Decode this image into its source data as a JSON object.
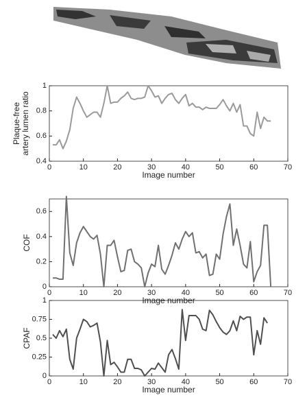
{
  "chart_data": [
    {
      "type": "line",
      "ylabel": [
        "Plaque-free",
        "artery lumen ratio"
      ],
      "xlabel": "Image number",
      "xlim": [
        0,
        70
      ],
      "xticks": [
        0,
        10,
        20,
        30,
        40,
        50,
        60,
        70
      ],
      "ylim": [
        0.4,
        1
      ],
      "yticks": [
        0.4,
        0.6,
        0.8,
        1
      ],
      "x": [
        1,
        2,
        3,
        4,
        5,
        6,
        7,
        8,
        9,
        10,
        11,
        12,
        13,
        14,
        15,
        16,
        17,
        18,
        19,
        20,
        21,
        22,
        23,
        24,
        25,
        26,
        27,
        28,
        29,
        30,
        31,
        32,
        33,
        34,
        35,
        36,
        37,
        38,
        39,
        40,
        41,
        42,
        43,
        44,
        45,
        46,
        47,
        48,
        49,
        50,
        51,
        52,
        53,
        54,
        55,
        56,
        57,
        58,
        59,
        60,
        61,
        62,
        63,
        64,
        65
      ],
      "series": [
        {
          "color": "#9a9a9a",
          "values": [
            0.53,
            0.53,
            0.57,
            0.5,
            0.56,
            0.65,
            0.82,
            0.91,
            0.86,
            0.8,
            0.75,
            0.77,
            0.79,
            0.79,
            0.75,
            0.86,
            1.0,
            0.86,
            0.87,
            0.87,
            0.9,
            0.92,
            0.95,
            0.9,
            0.89,
            0.9,
            0.9,
            0.91,
            1.0,
            0.96,
            0.91,
            0.92,
            0.86,
            0.9,
            0.93,
            0.94,
            0.89,
            0.86,
            0.9,
            0.93,
            0.84,
            0.86,
            0.83,
            0.83,
            0.81,
            0.83,
            0.82,
            0.82,
            0.82,
            0.85,
            0.89,
            0.84,
            0.8,
            0.86,
            0.79,
            0.85,
            0.68,
            0.68,
            0.62,
            0.6,
            0.79,
            0.66,
            0.75,
            0.72,
            0.72
          ]
        }
      ]
    },
    {
      "type": "line",
      "ylabel": [
        "COF"
      ],
      "xlabel": "Image number",
      "xlim": [
        0,
        70
      ],
      "xticks": [
        0,
        10,
        20,
        30,
        40,
        50,
        60,
        70
      ],
      "ylim": [
        0,
        0.7
      ],
      "yticks": [
        0,
        0.2,
        0.4,
        0.6
      ],
      "x": [
        1,
        2,
        3,
        4,
        5,
        6,
        7,
        8,
        9,
        10,
        11,
        12,
        13,
        14,
        15,
        16,
        17,
        18,
        19,
        20,
        21,
        22,
        23,
        24,
        25,
        26,
        27,
        28,
        29,
        30,
        31,
        32,
        33,
        34,
        35,
        36,
        37,
        38,
        39,
        40,
        41,
        42,
        43,
        44,
        45,
        46,
        47,
        48,
        49,
        50,
        51,
        52,
        53,
        54,
        55,
        56,
        57,
        58,
        59,
        60,
        61,
        62,
        63,
        64,
        65
      ],
      "series": [
        {
          "color": "#707070",
          "values": [
            0.07,
            0.07,
            0.06,
            0.06,
            0.72,
            0.27,
            0.17,
            0.35,
            0.43,
            0.48,
            0.44,
            0.4,
            0.38,
            0.41,
            0.26,
            0.0,
            0.33,
            0.33,
            0.37,
            0.24,
            0.12,
            0.13,
            0.29,
            0.3,
            0.2,
            0.18,
            0.15,
            0.0,
            0.11,
            0.18,
            0.16,
            0.33,
            0.14,
            0.1,
            0.17,
            0.25,
            0.35,
            0.3,
            0.38,
            0.44,
            0.4,
            0.43,
            0.27,
            0.28,
            0.23,
            0.26,
            0.09,
            0.1,
            0.26,
            0.22,
            0.42,
            0.56,
            0.66,
            0.33,
            0.46,
            0.33,
            0.18,
            0.15,
            0.36,
            0.04,
            0.12,
            0.17,
            0.49,
            0.49,
            0.0
          ]
        }
      ]
    },
    {
      "type": "line",
      "ylabel": [
        "CPAF"
      ],
      "xlabel": "Image number",
      "xlim": [
        0,
        70
      ],
      "xticks": [
        0,
        10,
        20,
        30,
        40,
        50,
        60,
        70
      ],
      "ylim": [
        0,
        1
      ],
      "yticks": [
        0,
        0.25,
        0.5,
        0.75,
        1
      ],
      "x": [
        1,
        2,
        3,
        4,
        5,
        6,
        7,
        8,
        9,
        10,
        11,
        12,
        13,
        14,
        15,
        16,
        17,
        18,
        19,
        20,
        21,
        22,
        23,
        24,
        25,
        26,
        27,
        28,
        29,
        30,
        31,
        32,
        33,
        34,
        35,
        36,
        37,
        38,
        39,
        40,
        41,
        42,
        43,
        44,
        45,
        46,
        47,
        48,
        49,
        50,
        51,
        52,
        53,
        54,
        55,
        56,
        57,
        58,
        59,
        60,
        61,
        62,
        63,
        64
      ],
      "series": [
        {
          "color": "#4f4f4f",
          "values": [
            0.55,
            0.5,
            0.6,
            0.52,
            0.62,
            0.22,
            0.09,
            0.5,
            0.62,
            0.75,
            0.72,
            0.65,
            0.67,
            0.7,
            0.45,
            0.0,
            0.47,
            0.15,
            0.18,
            0.12,
            0.05,
            0.05,
            0.22,
            0.22,
            0.1,
            0.1,
            0.08,
            0.0,
            0.05,
            0.1,
            0.09,
            0.17,
            0.11,
            0.05,
            0.28,
            0.35,
            0.23,
            0.09,
            0.88,
            0.47,
            0.8,
            0.8,
            0.8,
            0.75,
            0.62,
            0.6,
            0.87,
            0.81,
            0.72,
            0.64,
            0.58,
            0.55,
            0.6,
            0.73,
            0.6,
            0.79,
            0.75,
            0.78,
            0.78,
            0.28,
            0.6,
            0.42,
            0.77,
            0.7
          ]
        }
      ]
    }
  ]
}
